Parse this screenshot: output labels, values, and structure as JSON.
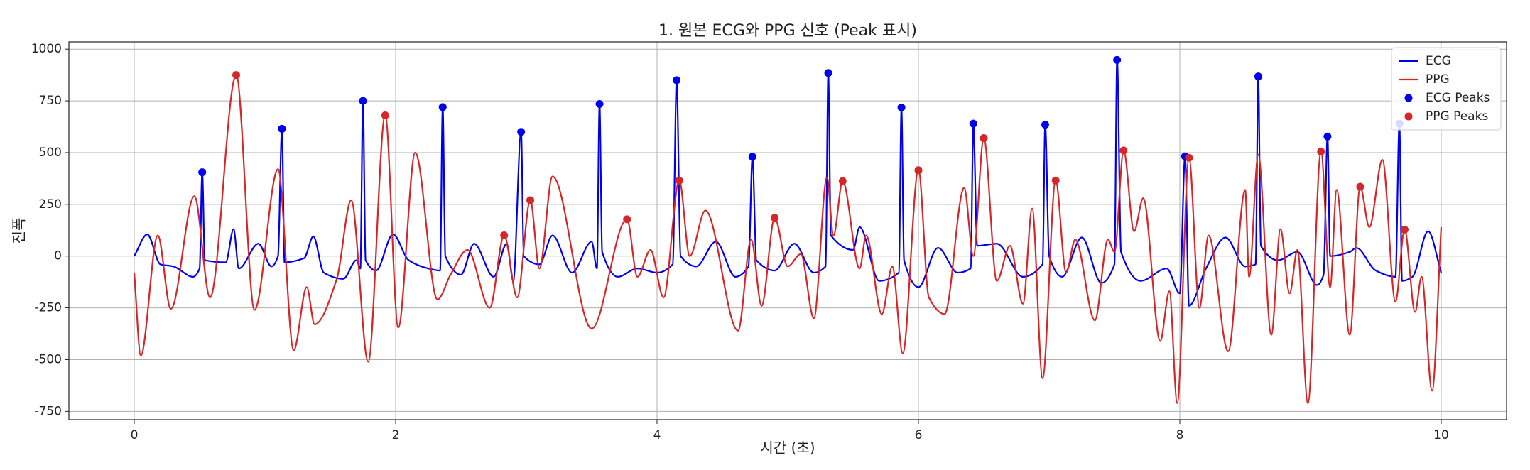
{
  "chart_data": {
    "type": "line",
    "title": "1. 원본 ECG와 PPG 신호 (Peak 표시)",
    "x_label": "시간 (초)",
    "y_label": "진폭",
    "xlim": [
      -0.5,
      10.5
    ],
    "ylim": [
      -790,
      1035
    ],
    "xticks": [
      0,
      2,
      4,
      6,
      8,
      10
    ],
    "yticks": [
      -750,
      -500,
      -250,
      0,
      250,
      500,
      750,
      1000
    ],
    "grid": true,
    "legend": "upper right",
    "series": [
      {
        "name": "ECG",
        "type": "line",
        "color": "#0000ee",
        "x": [
          0,
          0.1,
          0.2,
          0.3,
          0.45,
          0.5,
          0.52,
          0.54,
          0.7,
          0.76,
          0.8,
          0.95,
          1.05,
          1.1,
          1.13,
          1.15,
          1.3,
          1.37,
          1.45,
          1.6,
          1.7,
          1.73,
          1.75,
          1.77,
          1.85,
          1.98,
          2.1,
          2.25,
          2.34,
          2.36,
          2.38,
          2.5,
          2.6,
          2.75,
          2.85,
          2.9,
          2.96,
          2.98,
          3.1,
          3.2,
          3.35,
          3.5,
          3.54,
          3.56,
          3.58,
          3.7,
          3.85,
          4.0,
          4.12,
          4.15,
          4.18,
          4.3,
          4.45,
          4.6,
          4.7,
          4.73,
          4.76,
          4.9,
          5.05,
          5.2,
          5.29,
          5.31,
          5.33,
          5.5,
          5.55,
          5.7,
          5.85,
          5.87,
          5.89,
          6.0,
          6.15,
          6.3,
          6.4,
          6.42,
          6.45,
          6.6,
          6.8,
          6.95,
          6.97,
          7.0,
          7.1,
          7.25,
          7.4,
          7.5,
          7.52,
          7.55,
          7.7,
          7.9,
          8.0,
          8.04,
          8.07,
          8.2,
          8.35,
          8.5,
          8.58,
          8.6,
          8.62,
          8.75,
          8.9,
          9.05,
          9.1,
          9.13,
          9.15,
          9.3,
          9.35,
          9.5,
          9.65,
          9.68,
          9.7,
          9.78,
          9.9,
          10.0
        ],
        "values": [
          0,
          105,
          -40,
          -50,
          -100,
          -60,
          405,
          -20,
          -30,
          130,
          -60,
          60,
          -50,
          0,
          615,
          -30,
          -10,
          95,
          -80,
          -110,
          -20,
          -60,
          750,
          -20,
          -70,
          105,
          -20,
          -60,
          -70,
          720,
          0,
          -90,
          60,
          -100,
          60,
          -120,
          600,
          0,
          -40,
          100,
          -80,
          70,
          -60,
          735,
          20,
          -100,
          -60,
          -80,
          -40,
          850,
          0,
          -50,
          70,
          -100,
          -50,
          480,
          -20,
          -70,
          60,
          -80,
          -50,
          885,
          100,
          30,
          140,
          -120,
          -80,
          718,
          -20,
          -150,
          40,
          -80,
          -60,
          640,
          50,
          60,
          -100,
          -40,
          635,
          0,
          -100,
          90,
          -130,
          -40,
          948,
          20,
          -120,
          -60,
          -180,
          482,
          -240,
          -60,
          90,
          -50,
          -40,
          868,
          50,
          -20,
          20,
          -140,
          -90,
          578,
          0,
          20,
          40,
          -70,
          -100,
          640,
          -120,
          -100,
          120,
          -80
        ]
      },
      {
        "name": "PPG",
        "type": "line",
        "color": "#d62728",
        "x": [
          0,
          0.05,
          0.18,
          0.28,
          0.46,
          0.58,
          0.78,
          0.92,
          1.1,
          1.22,
          1.32,
          1.38,
          1.55,
          1.66,
          1.79,
          1.92,
          2.02,
          2.15,
          2.32,
          2.42,
          2.55,
          2.72,
          2.83,
          2.93,
          3.03,
          3.1,
          3.2,
          3.5,
          3.77,
          3.85,
          3.95,
          4.05,
          4.17,
          4.25,
          4.37,
          4.62,
          4.72,
          4.8,
          4.9,
          5.0,
          5.1,
          5.2,
          5.3,
          5.35,
          5.42,
          5.55,
          5.6,
          5.72,
          5.8,
          5.88,
          6.0,
          6.08,
          6.2,
          6.35,
          6.42,
          6.5,
          6.6,
          6.7,
          6.8,
          6.87,
          6.95,
          7.05,
          7.13,
          7.2,
          7.35,
          7.45,
          7.5,
          7.57,
          7.65,
          7.72,
          7.85,
          7.92,
          7.98,
          8.07,
          8.15,
          8.22,
          8.37,
          8.5,
          8.53,
          8.6,
          8.7,
          8.77,
          8.84,
          8.9,
          8.98,
          9.08,
          9.15,
          9.2,
          9.3,
          9.38,
          9.45,
          9.55,
          9.65,
          9.72,
          9.8,
          9.85,
          9.93,
          10.0
        ],
        "values": [
          -80,
          -480,
          100,
          -255,
          290,
          -200,
          875,
          -260,
          420,
          -455,
          -150,
          -330,
          -110,
          270,
          -510,
          680,
          -345,
          500,
          -210,
          -90,
          30,
          -250,
          100,
          -200,
          270,
          -60,
          385,
          -350,
          178,
          -100,
          30,
          -200,
          365,
          0,
          220,
          -360,
          80,
          -240,
          185,
          -50,
          10,
          -300,
          380,
          100,
          362,
          -60,
          100,
          -280,
          -50,
          -470,
          415,
          -200,
          -280,
          330,
          0,
          570,
          -120,
          50,
          -230,
          230,
          -590,
          365,
          -80,
          80,
          -310,
          80,
          20,
          510,
          120,
          280,
          -410,
          -170,
          -710,
          475,
          -250,
          100,
          -460,
          320,
          -100,
          490,
          -380,
          130,
          -180,
          30,
          -710,
          505,
          -150,
          320,
          -380,
          335,
          140,
          465,
          -220,
          128,
          -270,
          -100,
          -650,
          140
        ]
      },
      {
        "name": "ECG Peaks",
        "type": "scatter",
        "color": "#0000ee",
        "x": [
          0.52,
          1.13,
          1.75,
          2.36,
          2.96,
          3.56,
          4.15,
          4.73,
          5.31,
          5.87,
          6.42,
          6.97,
          7.52,
          8.04,
          8.6,
          9.13,
          9.68
        ],
        "values": [
          405,
          615,
          750,
          720,
          600,
          735,
          850,
          480,
          885,
          718,
          640,
          635,
          948,
          482,
          868,
          578,
          640
        ]
      },
      {
        "name": "PPG Peaks",
        "type": "scatter",
        "color": "#d62728",
        "x": [
          0.78,
          1.92,
          2.83,
          3.03,
          3.77,
          4.17,
          4.9,
          5.42,
          6.0,
          6.5,
          7.05,
          7.57,
          8.07,
          9.08,
          9.38,
          9.72
        ],
        "values": [
          875,
          680,
          100,
          270,
          178,
          365,
          185,
          362,
          415,
          570,
          365,
          510,
          475,
          505,
          335,
          128
        ]
      }
    ]
  }
}
